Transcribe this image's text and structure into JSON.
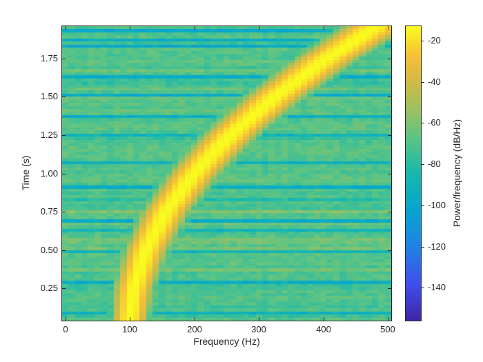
{
  "figure": {
    "background": "#ffffff",
    "axes_color": "#262626"
  },
  "chart_data": {
    "type": "heatmap",
    "title": "",
    "xlabel": "Frequency (Hz)",
    "ylabel": "Time (s)",
    "colorbar_label": "Power/frequency (dB/Hz)",
    "x_ticks": [
      0,
      100,
      200,
      300,
      400,
      500
    ],
    "x_tick_labels": [
      "0",
      "100",
      "200",
      "300",
      "400",
      "500"
    ],
    "y_ticks": [
      0.25,
      0.5,
      0.75,
      1.0,
      1.25,
      1.5,
      1.75
    ],
    "y_tick_labels": [
      "0.25",
      "0.50",
      "0.75",
      "1.00",
      "1.25",
      "1.50",
      "1.75"
    ],
    "x_range": [
      -5,
      505
    ],
    "y_range": [
      0.04,
      1.96
    ],
    "colorbar_ticks": [
      -20,
      -40,
      -60,
      -80,
      -100,
      -120,
      -140
    ],
    "colorbar_tick_labels": [
      "-20",
      "-40",
      "-60",
      "-80",
      "-100",
      "-120",
      "-140"
    ],
    "color_range_db": [
      -156,
      -13
    ],
    "colormap": "parula",
    "grid": false,
    "legend": "colorbar-right",
    "freq_bin_hz": 10,
    "time_bin_s": 0.02,
    "signal": {
      "description": "Spectrogram of an upward quadratic chirp in broadband noise; bright ridge sweeps from ~100 Hz at t=0.05 s to ~480 Hz at t=1.95 s",
      "instantaneous_frequency": "f(t) = 100 + 100*t^2 Hz",
      "ridge_points": [
        [
          0.05,
          100
        ],
        [
          0.25,
          106
        ],
        [
          0.5,
          125
        ],
        [
          0.75,
          156
        ],
        [
          1.0,
          200
        ],
        [
          1.25,
          256
        ],
        [
          1.5,
          325
        ],
        [
          1.75,
          406
        ],
        [
          1.95,
          480
        ]
      ],
      "ridge_peak_db": -13,
      "noise_floor_db": -70,
      "noise_dip_times_s": [
        1.93,
        1.87,
        1.83,
        1.62,
        1.51,
        1.38,
        1.26,
        1.07,
        0.91,
        0.69,
        0.49,
        0.3,
        0.095
      ]
    },
    "colormap_stops": [
      [
        0.0,
        62,
        38,
        168
      ],
      [
        0.12,
        64,
        77,
        237
      ],
      [
        0.25,
        33,
        130,
        230
      ],
      [
        0.38,
        6,
        166,
        206
      ],
      [
        0.5,
        24,
        184,
        174
      ],
      [
        0.62,
        92,
        196,
        132
      ],
      [
        0.72,
        158,
        193,
        96
      ],
      [
        0.82,
        214,
        186,
        69
      ],
      [
        0.9,
        248,
        191,
        55
      ],
      [
        1.0,
        249,
        251,
        30
      ]
    ]
  }
}
